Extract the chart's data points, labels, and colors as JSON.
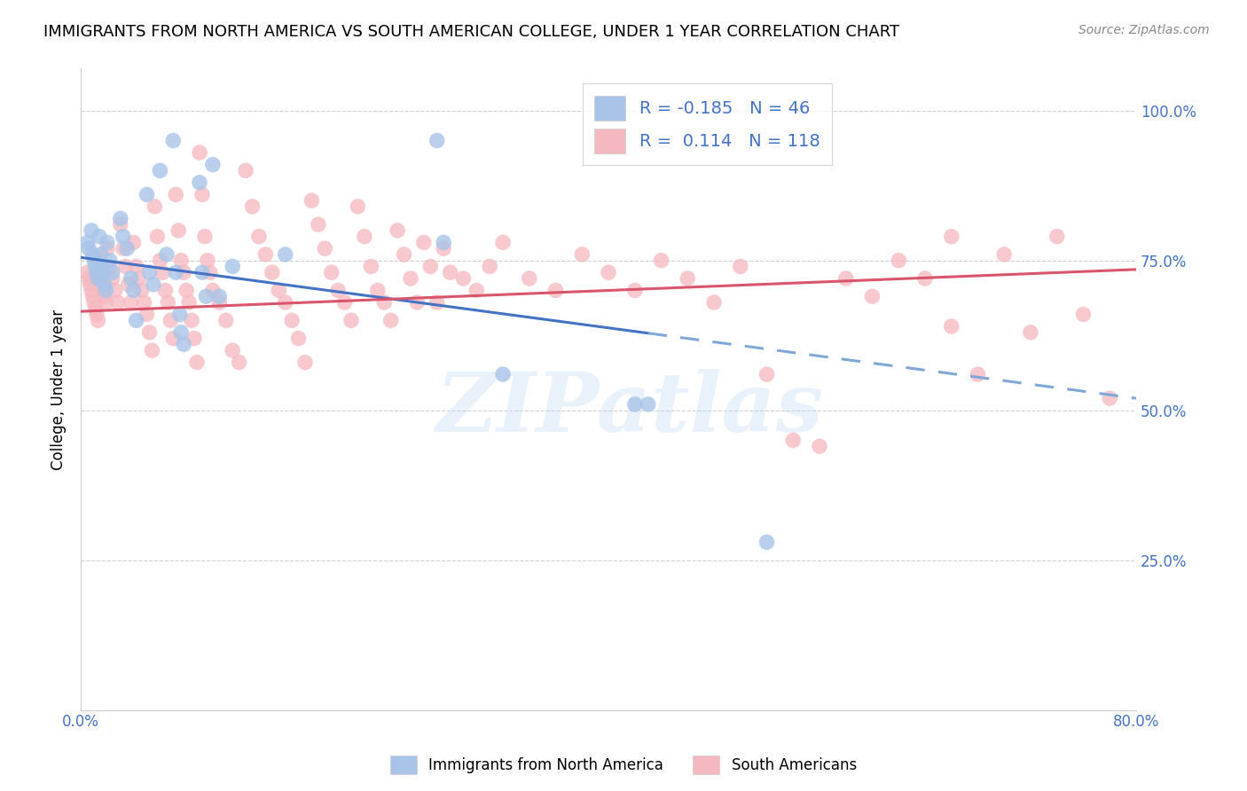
{
  "title": "IMMIGRANTS FROM NORTH AMERICA VS SOUTH AMERICAN COLLEGE, UNDER 1 YEAR CORRELATION CHART",
  "source": "Source: ZipAtlas.com",
  "ylabel": "College, Under 1 year",
  "ytick_labels": [
    "100.0%",
    "75.0%",
    "50.0%",
    "25.0%"
  ],
  "ytick_positions": [
    1.0,
    0.75,
    0.5,
    0.25
  ],
  "xlim": [
    0.0,
    0.8
  ],
  "ylim": [
    0.0,
    1.07
  ],
  "legend_r_blue": "-0.185",
  "legend_n_blue": "46",
  "legend_r_pink": "0.114",
  "legend_n_pink": "118",
  "legend_label_blue": "Immigrants from North America",
  "legend_label_pink": "South Americans",
  "blue_color": "#a8c4e8",
  "pink_color": "#f5b8c0",
  "trendline_blue_solid_color": "#4472c4",
  "trendline_blue_dashed_color": "#7fa8d8",
  "trendline_pink_color": "#d9556b",
  "blue_scatter": [
    [
      0.005,
      0.78
    ],
    [
      0.006,
      0.77
    ],
    [
      0.008,
      0.8
    ],
    [
      0.009,
      0.76
    ],
    [
      0.01,
      0.75
    ],
    [
      0.011,
      0.74
    ],
    [
      0.012,
      0.73
    ],
    [
      0.013,
      0.72
    ],
    [
      0.014,
      0.79
    ],
    [
      0.015,
      0.76
    ],
    [
      0.016,
      0.74
    ],
    [
      0.017,
      0.73
    ],
    [
      0.018,
      0.71
    ],
    [
      0.019,
      0.7
    ],
    [
      0.02,
      0.78
    ],
    [
      0.022,
      0.75
    ],
    [
      0.024,
      0.73
    ],
    [
      0.03,
      0.82
    ],
    [
      0.032,
      0.79
    ],
    [
      0.035,
      0.77
    ],
    [
      0.038,
      0.72
    ],
    [
      0.04,
      0.7
    ],
    [
      0.042,
      0.65
    ],
    [
      0.05,
      0.86
    ],
    [
      0.052,
      0.73
    ],
    [
      0.055,
      0.71
    ],
    [
      0.06,
      0.9
    ],
    [
      0.065,
      0.76
    ],
    [
      0.07,
      0.95
    ],
    [
      0.072,
      0.73
    ],
    [
      0.075,
      0.66
    ],
    [
      0.076,
      0.63
    ],
    [
      0.078,
      0.61
    ],
    [
      0.09,
      0.88
    ],
    [
      0.092,
      0.73
    ],
    [
      0.095,
      0.69
    ],
    [
      0.1,
      0.91
    ],
    [
      0.105,
      0.69
    ],
    [
      0.115,
      0.74
    ],
    [
      0.155,
      0.76
    ],
    [
      0.27,
      0.95
    ],
    [
      0.275,
      0.78
    ],
    [
      0.32,
      0.56
    ],
    [
      0.42,
      0.51
    ],
    [
      0.43,
      0.51
    ],
    [
      0.52,
      0.28
    ]
  ],
  "pink_scatter": [
    [
      0.005,
      0.73
    ],
    [
      0.006,
      0.72
    ],
    [
      0.007,
      0.71
    ],
    [
      0.008,
      0.7
    ],
    [
      0.009,
      0.69
    ],
    [
      0.01,
      0.68
    ],
    [
      0.011,
      0.67
    ],
    [
      0.012,
      0.66
    ],
    [
      0.013,
      0.65
    ],
    [
      0.014,
      0.75
    ],
    [
      0.015,
      0.72
    ],
    [
      0.016,
      0.71
    ],
    [
      0.017,
      0.7
    ],
    [
      0.018,
      0.69
    ],
    [
      0.019,
      0.68
    ],
    [
      0.02,
      0.77
    ],
    [
      0.022,
      0.74
    ],
    [
      0.024,
      0.72
    ],
    [
      0.026,
      0.7
    ],
    [
      0.028,
      0.68
    ],
    [
      0.03,
      0.81
    ],
    [
      0.032,
      0.77
    ],
    [
      0.034,
      0.74
    ],
    [
      0.036,
      0.71
    ],
    [
      0.038,
      0.68
    ],
    [
      0.04,
      0.78
    ],
    [
      0.042,
      0.74
    ],
    [
      0.044,
      0.72
    ],
    [
      0.046,
      0.7
    ],
    [
      0.048,
      0.68
    ],
    [
      0.05,
      0.66
    ],
    [
      0.052,
      0.63
    ],
    [
      0.054,
      0.6
    ],
    [
      0.056,
      0.84
    ],
    [
      0.058,
      0.79
    ],
    [
      0.06,
      0.75
    ],
    [
      0.062,
      0.73
    ],
    [
      0.064,
      0.7
    ],
    [
      0.066,
      0.68
    ],
    [
      0.068,
      0.65
    ],
    [
      0.07,
      0.62
    ],
    [
      0.072,
      0.86
    ],
    [
      0.074,
      0.8
    ],
    [
      0.076,
      0.75
    ],
    [
      0.078,
      0.73
    ],
    [
      0.08,
      0.7
    ],
    [
      0.082,
      0.68
    ],
    [
      0.084,
      0.65
    ],
    [
      0.086,
      0.62
    ],
    [
      0.088,
      0.58
    ],
    [
      0.09,
      0.93
    ],
    [
      0.092,
      0.86
    ],
    [
      0.094,
      0.79
    ],
    [
      0.096,
      0.75
    ],
    [
      0.098,
      0.73
    ],
    [
      0.1,
      0.7
    ],
    [
      0.105,
      0.68
    ],
    [
      0.11,
      0.65
    ],
    [
      0.115,
      0.6
    ],
    [
      0.12,
      0.58
    ],
    [
      0.125,
      0.9
    ],
    [
      0.13,
      0.84
    ],
    [
      0.135,
      0.79
    ],
    [
      0.14,
      0.76
    ],
    [
      0.145,
      0.73
    ],
    [
      0.15,
      0.7
    ],
    [
      0.155,
      0.68
    ],
    [
      0.16,
      0.65
    ],
    [
      0.165,
      0.62
    ],
    [
      0.17,
      0.58
    ],
    [
      0.175,
      0.85
    ],
    [
      0.18,
      0.81
    ],
    [
      0.185,
      0.77
    ],
    [
      0.19,
      0.73
    ],
    [
      0.195,
      0.7
    ],
    [
      0.2,
      0.68
    ],
    [
      0.205,
      0.65
    ],
    [
      0.21,
      0.84
    ],
    [
      0.215,
      0.79
    ],
    [
      0.22,
      0.74
    ],
    [
      0.225,
      0.7
    ],
    [
      0.23,
      0.68
    ],
    [
      0.235,
      0.65
    ],
    [
      0.24,
      0.8
    ],
    [
      0.245,
      0.76
    ],
    [
      0.25,
      0.72
    ],
    [
      0.255,
      0.68
    ],
    [
      0.26,
      0.78
    ],
    [
      0.265,
      0.74
    ],
    [
      0.27,
      0.68
    ],
    [
      0.275,
      0.77
    ],
    [
      0.28,
      0.73
    ],
    [
      0.29,
      0.72
    ],
    [
      0.3,
      0.7
    ],
    [
      0.31,
      0.74
    ],
    [
      0.32,
      0.78
    ],
    [
      0.34,
      0.72
    ],
    [
      0.36,
      0.7
    ],
    [
      0.38,
      0.76
    ],
    [
      0.4,
      0.73
    ],
    [
      0.42,
      0.7
    ],
    [
      0.44,
      0.75
    ],
    [
      0.46,
      0.72
    ],
    [
      0.48,
      0.68
    ],
    [
      0.5,
      0.74
    ],
    [
      0.52,
      0.56
    ],
    [
      0.54,
      0.45
    ],
    [
      0.56,
      0.44
    ],
    [
      0.58,
      0.72
    ],
    [
      0.6,
      0.69
    ],
    [
      0.62,
      0.75
    ],
    [
      0.64,
      0.72
    ],
    [
      0.66,
      0.64
    ],
    [
      0.68,
      0.56
    ],
    [
      0.7,
      0.76
    ],
    [
      0.72,
      0.63
    ],
    [
      0.74,
      0.79
    ],
    [
      0.76,
      0.66
    ],
    [
      0.78,
      0.52
    ],
    [
      0.66,
      0.79
    ]
  ],
  "blue_trend_x_start": 0.0,
  "blue_trend_y_start": 0.755,
  "blue_trend_x_solid_end": 0.43,
  "blue_trend_x_end": 0.8,
  "blue_trend_y_end": 0.52,
  "pink_trend_x_start": 0.0,
  "pink_trend_y_start": 0.665,
  "pink_trend_x_end": 0.8,
  "pink_trend_y_end": 0.735,
  "watermark": "ZIPatlas",
  "grid_color": "#d0d0d0",
  "background_color": "#ffffff",
  "title_fontsize": 13,
  "axis_label_color": "#4472c4",
  "right_ytick_color": "#4472c4"
}
